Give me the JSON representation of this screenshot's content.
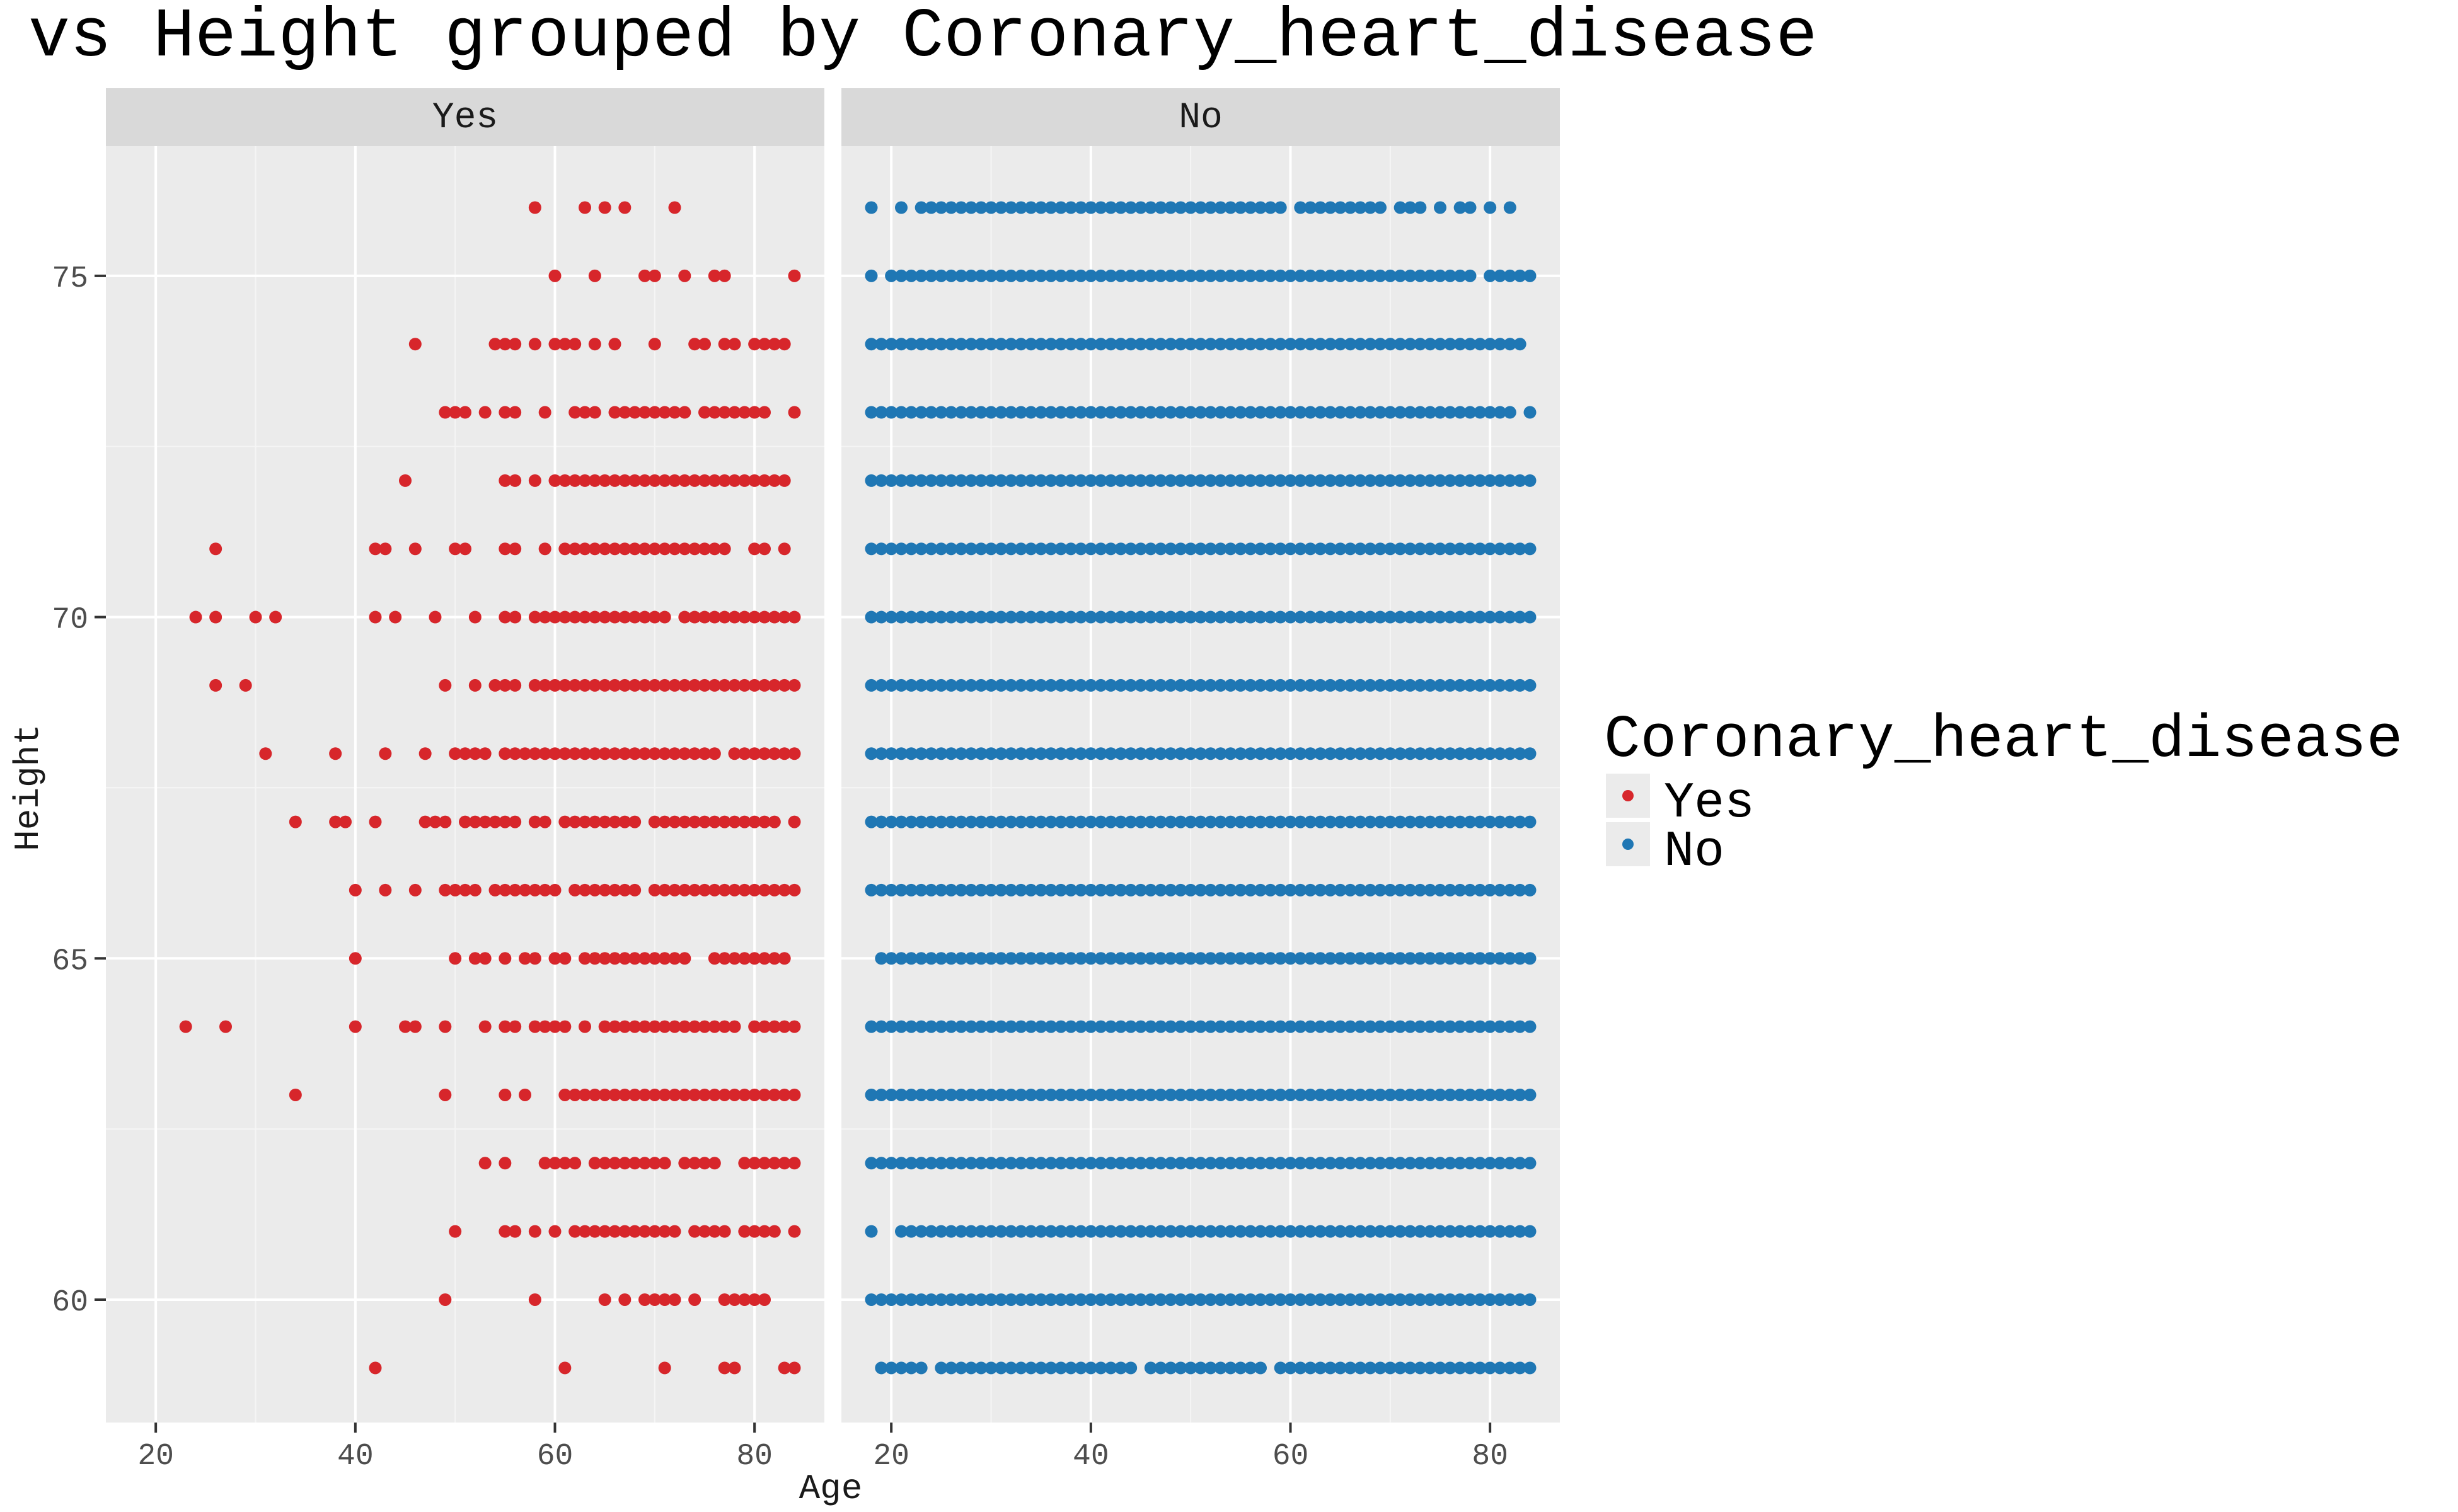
{
  "chart_data": {
    "type": "scatter",
    "title": "vs Height grouped by Coronary_heart_disease",
    "xlabel": "Age",
    "ylabel": "Height",
    "xlim": [
      15,
      87
    ],
    "ylim": [
      58.2,
      76.9
    ],
    "x_ticks": [
      20,
      40,
      60,
      80
    ],
    "y_ticks": [
      60,
      65,
      70,
      75
    ],
    "grid": true,
    "legend_position": "right",
    "legend_title": "Coronary_heart_disease",
    "facets": [
      {
        "label": "Yes",
        "series_name": "Yes",
        "color": "#D7262B",
        "rows": [
          {
            "y": 76,
            "x": [
              58,
              63,
              65,
              67,
              72
            ]
          },
          {
            "y": 75,
            "x": [
              60,
              64,
              69,
              70,
              73,
              76,
              77,
              84
            ]
          },
          {
            "y": 74,
            "x": [
              46,
              54,
              55,
              56,
              58,
              60,
              61,
              62,
              64,
              66,
              70,
              74,
              75,
              77,
              78,
              80,
              81,
              82,
              83
            ]
          },
          {
            "y": 73,
            "x": [
              49,
              50,
              51,
              53,
              55,
              56,
              59,
              62,
              63,
              64,
              66,
              67,
              68,
              69,
              70,
              71,
              72,
              73,
              75,
              76,
              77,
              78,
              79,
              80,
              81,
              84
            ]
          },
          {
            "y": 72,
            "x": [
              45,
              55,
              56,
              58,
              60,
              61,
              62,
              63,
              64,
              65,
              66,
              67,
              68,
              69,
              70,
              71,
              72,
              73,
              74,
              75,
              76,
              77,
              78,
              79,
              80,
              81,
              82,
              83
            ]
          },
          {
            "y": 71,
            "x": [
              26,
              42,
              43,
              46,
              50,
              51,
              55,
              56,
              59,
              61,
              62,
              63,
              64,
              65,
              66,
              67,
              68,
              69,
              70,
              71,
              72,
              73,
              74,
              75,
              76,
              77,
              80,
              81,
              83
            ]
          },
          {
            "y": 70,
            "x": [
              24,
              26,
              30,
              32,
              42,
              44,
              48,
              52,
              55,
              56,
              58,
              59,
              60,
              61,
              62,
              63,
              64,
              65,
              66,
              67,
              68,
              69,
              70,
              71,
              73,
              74,
              75,
              76,
              77,
              78,
              79,
              80,
              81,
              82,
              83,
              84
            ]
          },
          {
            "y": 69,
            "x": [
              26,
              29,
              49,
              52,
              54,
              55,
              56,
              58,
              59,
              60,
              61,
              62,
              63,
              64,
              65,
              66,
              67,
              68,
              69,
              70,
              71,
              72,
              73,
              74,
              75,
              76,
              77,
              78,
              79,
              80,
              81,
              82,
              83,
              84
            ]
          },
          {
            "y": 68,
            "x": [
              31,
              38,
              43,
              47,
              50,
              51,
              52,
              53,
              55,
              56,
              57,
              58,
              59,
              60,
              61,
              62,
              63,
              64,
              65,
              66,
              67,
              68,
              69,
              70,
              71,
              72,
              73,
              74,
              75,
              76,
              78,
              79,
              80,
              81,
              82,
              83,
              84
            ]
          },
          {
            "y": 67,
            "x": [
              34,
              38,
              39,
              42,
              47,
              48,
              49,
              51,
              52,
              53,
              54,
              55,
              56,
              58,
              59,
              61,
              62,
              63,
              64,
              65,
              66,
              67,
              68,
              70,
              71,
              72,
              73,
              74,
              75,
              76,
              77,
              78,
              79,
              80,
              81,
              82,
              84
            ]
          },
          {
            "y": 66,
            "x": [
              40,
              43,
              46,
              49,
              50,
              51,
              52,
              54,
              55,
              56,
              57,
              58,
              59,
              60,
              62,
              63,
              64,
              65,
              66,
              67,
              68,
              70,
              71,
              72,
              73,
              74,
              75,
              76,
              77,
              78,
              79,
              80,
              81,
              82,
              83,
              84
            ]
          },
          {
            "y": 65,
            "x": [
              40,
              50,
              52,
              53,
              55,
              57,
              58,
              60,
              61,
              63,
              64,
              65,
              66,
              67,
              68,
              69,
              70,
              71,
              72,
              73,
              76,
              77,
              78,
              79,
              80,
              81,
              82,
              83
            ]
          },
          {
            "y": 64,
            "x": [
              23,
              27,
              40,
              45,
              46,
              49,
              53,
              55,
              56,
              58,
              59,
              60,
              61,
              63,
              65,
              66,
              67,
              68,
              69,
              70,
              71,
              72,
              73,
              74,
              75,
              76,
              77,
              78,
              80,
              81,
              82,
              83,
              84
            ]
          },
          {
            "y": 63,
            "x": [
              34,
              49,
              55,
              57,
              61,
              62,
              63,
              64,
              65,
              66,
              67,
              68,
              69,
              70,
              71,
              72,
              73,
              74,
              75,
              76,
              77,
              78,
              79,
              80,
              81,
              82,
              83,
              84
            ]
          },
          {
            "y": 62,
            "x": [
              53,
              55,
              59,
              60,
              61,
              62,
              64,
              65,
              66,
              67,
              68,
              69,
              70,
              71,
              73,
              74,
              75,
              76,
              79,
              80,
              81,
              82,
              83,
              84
            ]
          },
          {
            "y": 61,
            "x": [
              50,
              55,
              56,
              58,
              60,
              62,
              63,
              64,
              65,
              66,
              67,
              68,
              69,
              70,
              71,
              72,
              74,
              75,
              76,
              77,
              79,
              80,
              81,
              82,
              84
            ]
          },
          {
            "y": 60,
            "x": [
              49,
              58,
              65,
              67,
              69,
              70,
              71,
              72,
              74,
              77,
              78,
              79,
              80,
              81
            ]
          },
          {
            "y": 59,
            "x": [
              42,
              61,
              71,
              77,
              78,
              83,
              84
            ]
          }
        ]
      },
      {
        "label": "No",
        "series_name": "No",
        "color": "#1F77B4",
        "rows": [
          {
            "y": 76,
            "ranges": [
              [
                18,
                18
              ],
              [
                21,
                21
              ],
              [
                23,
                59
              ],
              [
                61,
                69
              ],
              [
                71,
                73
              ],
              [
                75,
                75
              ],
              [
                77,
                78
              ],
              [
                80,
                80
              ],
              [
                82,
                82
              ]
            ]
          },
          {
            "y": 75,
            "ranges": [
              [
                18,
                18
              ],
              [
                20,
                78
              ],
              [
                80,
                84
              ]
            ]
          },
          {
            "y": 74,
            "ranges": [
              [
                18,
                83
              ]
            ]
          },
          {
            "y": 73,
            "ranges": [
              [
                18,
                82
              ],
              [
                84,
                84
              ]
            ]
          },
          {
            "y": 72,
            "ranges": [
              [
                18,
                84
              ]
            ]
          },
          {
            "y": 71,
            "ranges": [
              [
                18,
                84
              ]
            ]
          },
          {
            "y": 70,
            "ranges": [
              [
                18,
                84
              ]
            ]
          },
          {
            "y": 69,
            "ranges": [
              [
                18,
                84
              ]
            ]
          },
          {
            "y": 68,
            "ranges": [
              [
                18,
                84
              ]
            ]
          },
          {
            "y": 67,
            "ranges": [
              [
                18,
                84
              ]
            ]
          },
          {
            "y": 66,
            "ranges": [
              [
                18,
                84
              ]
            ]
          },
          {
            "y": 65,
            "ranges": [
              [
                19,
                84
              ]
            ]
          },
          {
            "y": 64,
            "ranges": [
              [
                18,
                84
              ]
            ]
          },
          {
            "y": 63,
            "ranges": [
              [
                18,
                84
              ]
            ]
          },
          {
            "y": 62,
            "ranges": [
              [
                18,
                84
              ]
            ]
          },
          {
            "y": 61,
            "ranges": [
              [
                18,
                18
              ],
              [
                21,
                84
              ]
            ]
          },
          {
            "y": 60,
            "ranges": [
              [
                18,
                84
              ]
            ]
          },
          {
            "y": 59,
            "ranges": [
              [
                19,
                23
              ],
              [
                25,
                44
              ],
              [
                46,
                57
              ],
              [
                59,
                84
              ]
            ]
          }
        ]
      }
    ]
  }
}
